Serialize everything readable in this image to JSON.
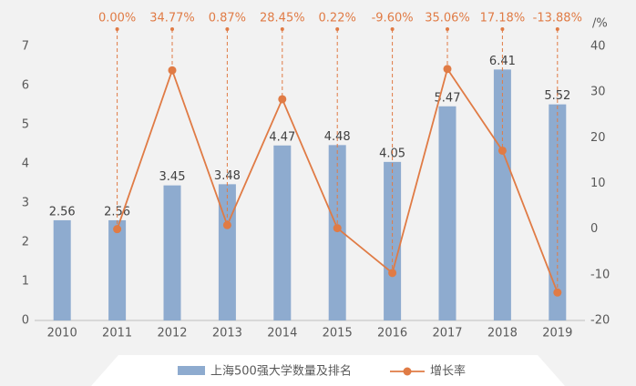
{
  "chart_data": {
    "type": "bar",
    "categories": [
      "2010",
      "2011",
      "2012",
      "2013",
      "2014",
      "2015",
      "2016",
      "2017",
      "2018",
      "2019"
    ],
    "series": [
      {
        "name": "上海500强大学数量及排名",
        "type": "bar",
        "color": "#8eabcf",
        "values": [
          2.56,
          2.56,
          3.45,
          3.48,
          4.47,
          4.48,
          4.05,
          5.47,
          6.41,
          5.52
        ]
      },
      {
        "name": "增长率",
        "type": "line",
        "axis": "y2",
        "color": "#e07b45",
        "values": [
          null,
          0.0,
          34.77,
          0.87,
          28.45,
          0.22,
          -9.6,
          35.06,
          17.18,
          -13.88
        ],
        "value_labels": [
          null,
          "0.00%",
          "34.77%",
          "0.87%",
          "28.45%",
          "0.22%",
          "-9.60%",
          "35.06%",
          "17.18%",
          "-13.88%"
        ]
      }
    ],
    "ylim": [
      0,
      7
    ],
    "yticks": [
      0,
      1,
      2,
      3,
      4,
      5,
      6,
      7
    ],
    "y2lim": [
      -20,
      40
    ],
    "y2ticks": [
      -20,
      -10,
      0,
      10,
      20,
      30,
      40
    ],
    "y2label": "/%",
    "legend": "bottom"
  }
}
